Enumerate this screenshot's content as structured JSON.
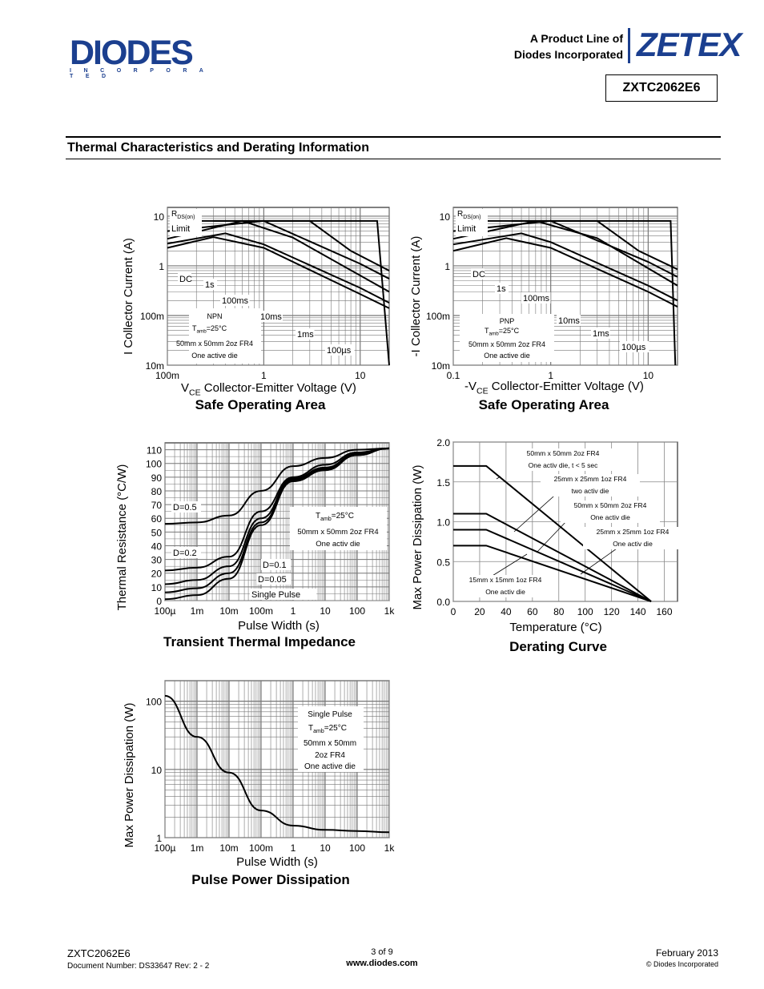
{
  "header": {
    "logo_text": "DIODES",
    "logo_sub": "I N C O R P O R A T E D",
    "product_line_1": "A Product Line of",
    "product_line_2": "Diodes Incorporated",
    "brand": "ZETEX",
    "part_number": "ZXTC2062E6"
  },
  "section": {
    "title": "Thermal Characteristics and Derating Information"
  },
  "charts": {
    "soa_npn": {
      "title": "Safe Operating Area",
      "ylabel": "I_C Collector Current (A)",
      "xlabel": "V_CE Collector-Emitter Voltage (V)",
      "xticks": [
        "100m",
        "1",
        "10"
      ],
      "yticks": [
        "10",
        "1",
        "100m",
        "10m"
      ],
      "labels": {
        "rds": "R",
        "rds_sub": "DS(on)",
        "limit": "Limit",
        "dc": "DC",
        "s1": "1s",
        "ms100": "100ms",
        "ms10": "10ms",
        "ms1": "1ms",
        "us100": "100µs",
        "type": "NPN",
        "tamb": "T",
        "tamb_sub": "amb",
        "tamb_val": "=25°C",
        "board": "50mm x 50mm 2oz FR4",
        "die": "One active die"
      }
    },
    "soa_pnp": {
      "title": "Safe Operating Area",
      "ylabel": "-I_C Collector Current (A)",
      "xlabel": "-V_CE Collector-Emitter Voltage (V)",
      "xticks": [
        "0.1",
        "1",
        "10"
      ],
      "yticks": [
        "10",
        "1",
        "100m",
        "10m"
      ],
      "labels": {
        "rds": "R",
        "rds_sub": "DS(on)",
        "limit": "Limit",
        "dc": "DC",
        "s1": "1s",
        "ms100": "100ms",
        "ms10": "10ms",
        "ms1": "1ms",
        "us100": "100µs",
        "type": "PNP",
        "tamb": "T",
        "tamb_sub": "amb",
        "tamb_val": "=25°C",
        "board": "50mm x 50mm 2oz FR4",
        "die": "One active die"
      }
    },
    "transient": {
      "title": "Transient Thermal Impedance",
      "ylabel": "Thermal Resistance (°C/W)",
      "xlabel": "Pulse Width (s)",
      "xticks": [
        "100µ",
        "1m",
        "10m",
        "100m",
        "1",
        "10",
        "100",
        "1k"
      ],
      "yticks": [
        "110",
        "100",
        "90",
        "80",
        "70",
        "60",
        "50",
        "40",
        "30",
        "20",
        "10",
        "0"
      ],
      "labels": {
        "d05": "D=0.5",
        "d02": "D=0.2",
        "d01": "D=0.1",
        "d005": "D=0.05",
        "single": "Single Pulse",
        "tamb": "T",
        "tamb_sub": "amb",
        "tamb_val": "=25°C",
        "board": "50mm x 50mm 2oz FR4",
        "die": "One activ die"
      }
    },
    "derating": {
      "title": "Derating Curve",
      "ylabel": "Max Power Dissipation (W)",
      "xlabel": "Temperature (°C)",
      "xticks": [
        "0",
        "20",
        "40",
        "60",
        "80",
        "100",
        "120",
        "140",
        "160"
      ],
      "yticks": [
        "2.0",
        "1.5",
        "1.0",
        "0.5",
        "0.0"
      ],
      "labels": {
        "a1": "50mm x 50mm 2oz FR4",
        "a2": "One activ die,  t < 5 sec",
        "b1": "25mm x 25mm 1oz FR4",
        "b2": "two activ die",
        "c1": "50mm x 50mm 2oz FR4",
        "c2": "One activ die",
        "d1": "25mm x 25mm 1oz FR4",
        "d2": "One activ die",
        "e1": "15mm x 15mm 1oz FR4",
        "e2": "One activ die"
      }
    },
    "pulse": {
      "title": "Pulse Power Dissipation",
      "ylabel": "Max Power Dissipation (W)",
      "xlabel": "Pulse Width (s)",
      "xticks": [
        "100µ",
        "1m",
        "10m",
        "100m",
        "1",
        "10",
        "100",
        "1k"
      ],
      "yticks": [
        "100",
        "10",
        "1"
      ],
      "labels": {
        "single": "Single Pulse",
        "tamb": "T",
        "tamb_sub": "amb",
        "tamb_val": "=25°C",
        "board1": "50mm x 50mm",
        "board2": "2oz FR4",
        "die": "One active die"
      }
    }
  },
  "chart_data": [
    {
      "type": "line",
      "title": "Safe Operating Area",
      "xlabel": "V_CE Collector-Emitter Voltage (V)",
      "ylabel": "I_C Collector Current (A)",
      "xlim": [
        0.1,
        20
      ],
      "ylim": [
        0.01,
        15
      ],
      "xscale": "log",
      "yscale": "log",
      "series": [
        {
          "name": "DC",
          "x": [
            0.1,
            0.3,
            1,
            10,
            20
          ],
          "y": [
            2.3,
            3.8,
            2.3,
            0.27,
            0.14
          ]
        },
        {
          "name": "1s",
          "x": [
            0.1,
            0.4,
            1,
            10,
            20
          ],
          "y": [
            2.8,
            4.5,
            2.7,
            0.36,
            0.18
          ]
        },
        {
          "name": "100ms",
          "x": [
            0.1,
            0.6,
            2,
            20
          ],
          "y": [
            3.5,
            8,
            3.7,
            0.3
          ]
        },
        {
          "name": "10ms",
          "x": [
            0.1,
            1,
            10,
            20
          ],
          "y": [
            5,
            8,
            1.1,
            0.55
          ]
        },
        {
          "name": "1ms",
          "x": [
            0.15,
            3,
            8,
            20
          ],
          "y": [
            8,
            8,
            2,
            0.8
          ]
        },
        {
          "name": "100µs",
          "x": [
            0.3,
            15,
            20
          ],
          "y": [
            8,
            8,
            0.01
          ]
        }
      ]
    },
    {
      "type": "line",
      "title": "Safe Operating Area",
      "xlabel": "-V_CE Collector-Emitter Voltage (V)",
      "ylabel": "-I_C Collector Current (A)",
      "xlim": [
        0.1,
        20
      ],
      "ylim": [
        0.01,
        15
      ],
      "xscale": "log",
      "yscale": "log",
      "series": [
        {
          "name": "DC",
          "x": [
            0.1,
            0.35,
            1,
            10,
            20
          ],
          "y": [
            2.0,
            3.6,
            2.3,
            0.3,
            0.15
          ]
        },
        {
          "name": "1s",
          "x": [
            0.1,
            0.5,
            1,
            10,
            20
          ],
          "y": [
            2.7,
            4.5,
            3.0,
            0.4,
            0.2
          ]
        },
        {
          "name": "100ms",
          "x": [
            0.1,
            0.7,
            3,
            20
          ],
          "y": [
            3.5,
            8,
            3.6,
            0.4
          ]
        },
        {
          "name": "10ms",
          "x": [
            0.1,
            1,
            10,
            20
          ],
          "y": [
            5,
            8,
            1.2,
            0.6
          ]
        },
        {
          "name": "1ms",
          "x": [
            0.2,
            3,
            8,
            20
          ],
          "y": [
            8,
            8,
            2,
            0.85
          ]
        },
        {
          "name": "100µs",
          "x": [
            0.4,
            17,
            19
          ],
          "y": [
            8,
            8,
            0.01
          ]
        }
      ]
    },
    {
      "type": "line",
      "title": "Transient Thermal Impedance",
      "xlabel": "Pulse Width (s)",
      "ylabel": "Thermal Resistance (°C/W)",
      "xlim": [
        0.0001,
        1000
      ],
      "ylim": [
        0,
        110
      ],
      "xscale": "log",
      "series": [
        {
          "name": "D=0.5",
          "x": [
            0.0001,
            0.001,
            0.01,
            0.1,
            1,
            10,
            100,
            1000
          ],
          "y": [
            56,
            57,
            62,
            80,
            98,
            104,
            110,
            111
          ]
        },
        {
          "name": "D=0.2",
          "x": [
            0.0001,
            0.001,
            0.01,
            0.1,
            1,
            10,
            100,
            1000
          ],
          "y": [
            22,
            24,
            32,
            65,
            90,
            99,
            108,
            111
          ]
        },
        {
          "name": "D=0.1",
          "x": [
            0.0001,
            0.001,
            0.01,
            0.1,
            1,
            10,
            100,
            1000
          ],
          "y": [
            12,
            15,
            25,
            60,
            89,
            97,
            107,
            111
          ]
        },
        {
          "name": "D=0.05",
          "x": [
            0.0001,
            0.001,
            0.01,
            0.1,
            1,
            10,
            100,
            1000
          ],
          "y": [
            6,
            9,
            20,
            57,
            88,
            96,
            106,
            111
          ]
        },
        {
          "name": "Single Pulse",
          "x": [
            0.0001,
            0.001,
            0.01,
            0.1,
            1,
            10,
            100,
            1000
          ],
          "y": [
            1,
            4,
            16,
            55,
            87,
            95,
            106,
            111
          ]
        }
      ]
    },
    {
      "type": "line",
      "title": "Derating Curve",
      "xlabel": "Temperature (°C)",
      "ylabel": "Max Power Dissipation (W)",
      "xlim": [
        0,
        160
      ],
      "ylim": [
        0,
        2.0
      ],
      "series": [
        {
          "name": "50mm x 50mm 2oz FR4 One activ die, t < 5 sec",
          "x": [
            0,
            25,
            150
          ],
          "y": [
            1.7,
            1.7,
            0
          ]
        },
        {
          "name": "25mm x 25mm 1oz FR4 two activ die",
          "x": [
            0,
            25,
            150
          ],
          "y": [
            1.1,
            1.1,
            0
          ]
        },
        {
          "name": "50mm x 50mm 2oz FR4 One activ die",
          "x": [
            0,
            25,
            150
          ],
          "y": [
            0.9,
            0.9,
            0
          ]
        },
        {
          "name": "15mm x 15mm 1oz FR4 One activ die",
          "x": [
            0,
            25,
            150
          ],
          "y": [
            0.7,
            0.7,
            0
          ]
        }
      ]
    },
    {
      "type": "line",
      "title": "Pulse Power Dissipation",
      "xlabel": "Pulse Width (s)",
      "ylabel": "Max Power Dissipation (W)",
      "xlim": [
        0.0001,
        1000
      ],
      "ylim": [
        1,
        200
      ],
      "xscale": "log",
      "yscale": "log",
      "series": [
        {
          "name": "Single Pulse",
          "x": [
            0.0001,
            0.001,
            0.01,
            0.1,
            1,
            10,
            100,
            1000
          ],
          "y": [
            120,
            30,
            9,
            2.5,
            1.5,
            1.3,
            1.25,
            1.2
          ]
        }
      ]
    }
  ],
  "footer": {
    "part": "ZXTC2062E6",
    "docnum": "Document Number: DS33647 Rev: 2 - 2",
    "page": "3 of 9",
    "url": "www.diodes.com",
    "date": "February 2013",
    "copyright": "© Diodes Incorporated"
  }
}
